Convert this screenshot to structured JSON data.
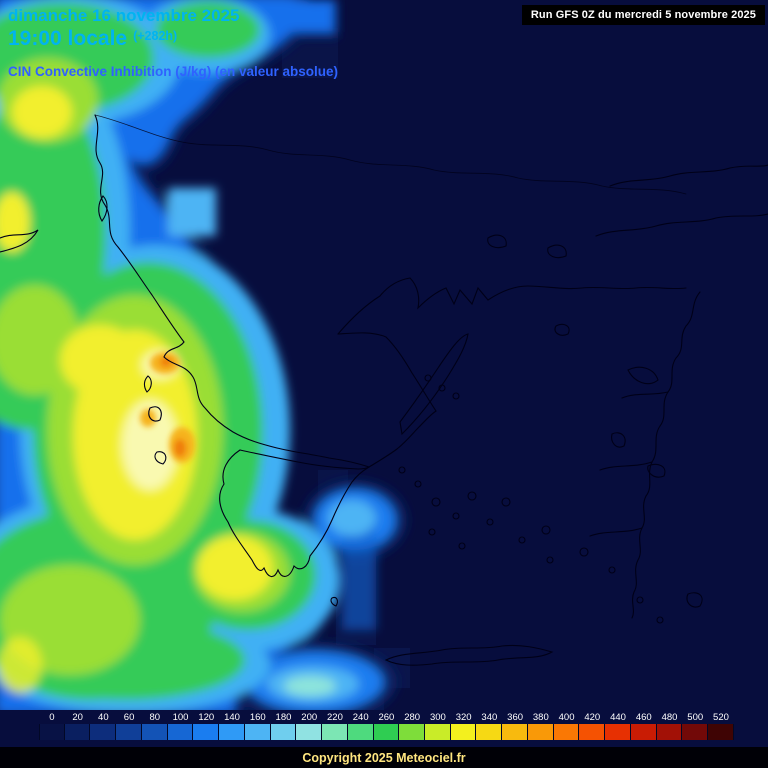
{
  "header": {
    "date_line": "dimanche 16 novembre 2025",
    "time_line": "19:00 locale",
    "run_offset": "(+282h)",
    "subtitle": "CIN Convective Inhibition (J/kg) (en valeur absolue)",
    "run_info": "Run GFS 0Z du mercredi 5 novembre 2025"
  },
  "colorbar": {
    "ticks": [
      "0",
      "20",
      "40",
      "60",
      "80",
      "100",
      "120",
      "140",
      "160",
      "180",
      "200",
      "220",
      "240",
      "260",
      "280",
      "300",
      "320",
      "340",
      "360",
      "380",
      "400",
      "420",
      "440",
      "460",
      "480",
      "500",
      "520"
    ],
    "colors": [
      "#081245",
      "#0a1f60",
      "#0d2d7c",
      "#103f98",
      "#1353b6",
      "#1667d4",
      "#1a7df0",
      "#2f9af6",
      "#4db4f4",
      "#6fceee",
      "#90e2e2",
      "#7ce6b4",
      "#4eda7e",
      "#2fcd52",
      "#7edd3a",
      "#c9ec28",
      "#f3f01e",
      "#f6d914",
      "#f8ba0e",
      "#f99908",
      "#fa7804",
      "#f55202",
      "#e73002",
      "#c91c04",
      "#a21106",
      "#720908",
      "#3f0404"
    ]
  },
  "footer": {
    "copyright": "Copyright 2025 Meteociel.fr"
  },
  "colors": {
    "background": "#070d3d",
    "title_cyan": "#00b4f0",
    "subtitle_blue": "#2f62ff",
    "coastline": "#000018"
  }
}
